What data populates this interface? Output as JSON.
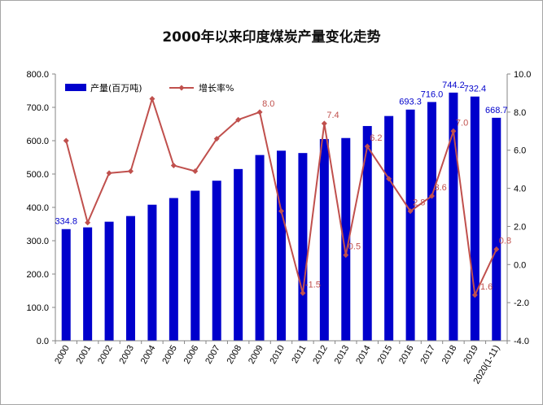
{
  "chart_data": {
    "title": "2000年以来印度煤炭产量变化走势",
    "type": "bar+line",
    "categories": [
      "2000",
      "2001",
      "2002",
      "2003",
      "2004",
      "2005",
      "2006",
      "2007",
      "2008",
      "2009",
      "2010",
      "2011",
      "2012",
      "2013",
      "2014",
      "2015",
      "2016",
      "2017",
      "2018",
      "2019",
      "2020(1-11)"
    ],
    "series": [
      {
        "name": "产量(百万吨)",
        "type": "bar",
        "axis": "left",
        "color": "#0000CC",
        "values": [
          334.8,
          340,
          357,
          374,
          408,
          428,
          450,
          480,
          515,
          557,
          570,
          563,
          605,
          608,
          644,
          674,
          693.3,
          716.0,
          744.2,
          732.4,
          668.7
        ]
      },
      {
        "name": "增长率%",
        "type": "line",
        "axis": "right",
        "color": "#C0504D",
        "values": [
          6.5,
          2.2,
          4.8,
          4.9,
          8.7,
          5.2,
          4.9,
          6.6,
          7.6,
          8.0,
          2.8,
          -1.5,
          7.4,
          0.5,
          6.2,
          4.5,
          2.8,
          3.6,
          7.0,
          -1.6,
          0.8
        ]
      }
    ],
    "bar_labels": [
      {
        "index": 0,
        "text": "334.8"
      },
      {
        "index": 16,
        "text": "693.3"
      },
      {
        "index": 17,
        "text": "716.0"
      },
      {
        "index": 18,
        "text": "744.2"
      },
      {
        "index": 19,
        "text": "732.4"
      },
      {
        "index": 20,
        "text": "668.7"
      }
    ],
    "line_labels": [
      {
        "index": 9,
        "text": "8.0"
      },
      {
        "index": 11,
        "text": "-1.5"
      },
      {
        "index": 12,
        "text": "7.4"
      },
      {
        "index": 13,
        "text": "0.5"
      },
      {
        "index": 14,
        "text": "6.2"
      },
      {
        "index": 16,
        "text": "2.8"
      },
      {
        "index": 17,
        "text": "3.6"
      },
      {
        "index": 18,
        "text": "7.0"
      },
      {
        "index": 19,
        "text": "-1.6"
      },
      {
        "index": 20,
        "text": "0.8"
      }
    ],
    "y_left": {
      "min": 0,
      "max": 800,
      "step": 100,
      "ticks": [
        "0.0",
        "100.0",
        "200.0",
        "300.0",
        "400.0",
        "500.0",
        "600.0",
        "700.0",
        "800.0"
      ]
    },
    "y_right": {
      "min": -4,
      "max": 10,
      "step": 2,
      "ticks": [
        "-4.0",
        "-2.0",
        "0.0",
        "2.0",
        "4.0",
        "6.0",
        "8.0",
        "10.0"
      ]
    },
    "legend_position": "top-left",
    "grid": false
  }
}
